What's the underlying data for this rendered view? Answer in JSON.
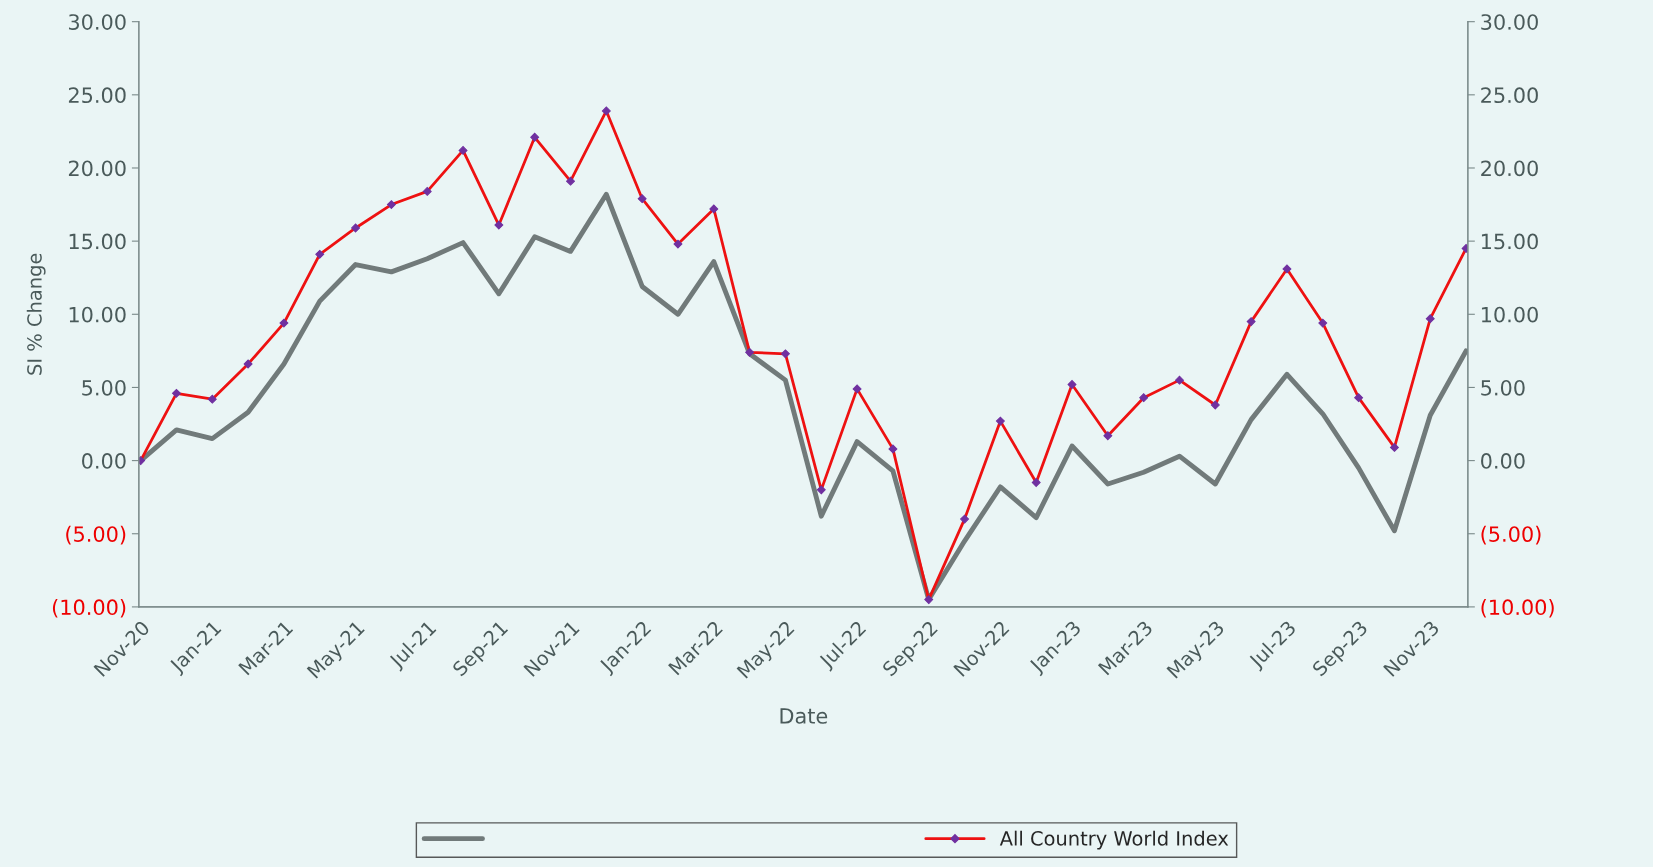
{
  "chart_data": {
    "type": "line",
    "xlabel": "Date",
    "ylabel": "SI % Change",
    "categories": [
      "Nov-20",
      null,
      "Jan-21",
      null,
      "Mar-21",
      null,
      "May-21",
      null,
      "Jul-21",
      null,
      "Sep-21",
      null,
      "Nov-21",
      null,
      "Jan-22",
      null,
      "Mar-22",
      null,
      "May-22",
      null,
      "Jul-22",
      null,
      "Sep-22",
      null,
      "Nov-22",
      null,
      "Jan-23",
      null,
      "Mar-23",
      null,
      "May-23",
      null,
      "Jul-23",
      null,
      "Sep-23",
      null,
      "Nov-23",
      null
    ],
    "series": [
      {
        "color": "#717a7a",
        "marker": "none",
        "values": [
          0,
          2.1,
          1.5,
          3.3,
          6.6,
          10.9,
          13.4,
          12.9,
          13.8,
          14.9,
          11.4,
          15.3,
          14.3,
          18.2,
          11.9,
          10.0,
          13.6,
          7.3,
          5.5,
          -3.8,
          1.3,
          -0.7,
          -9.5,
          -5.5,
          -1.8,
          -3.9,
          1.0,
          -1.6,
          -0.8,
          0.3,
          -1.6,
          2.8,
          5.9,
          3.2,
          -0.5,
          -4.8,
          3.1,
          7.5
        ]
      },
      {
        "name": "All Country World Index",
        "color": "#ee1111",
        "marker": "diamond",
        "values": [
          0,
          4.6,
          4.2,
          6.6,
          9.4,
          14.1,
          15.9,
          17.5,
          18.4,
          21.2,
          16.1,
          22.1,
          19.1,
          23.9,
          17.9,
          14.8,
          17.2,
          7.4,
          7.3,
          -2.0,
          4.9,
          0.8,
          -9.5,
          -4.0,
          2.7,
          -1.5,
          5.2,
          1.7,
          4.3,
          5.5,
          3.8,
          9.5,
          13.1,
          9.4,
          4.3,
          0.9,
          9.7,
          14.5
        ]
      }
    ],
    "ylim": [
      -10,
      30
    ],
    "yticks": [
      {
        "value": -10,
        "label": "(10.00)"
      },
      {
        "value": -5,
        "label": "(5.00)"
      },
      {
        "value": 0,
        "label": "0.00"
      },
      {
        "value": 5,
        "label": "5.00"
      },
      {
        "value": 10,
        "label": "10.00"
      },
      {
        "value": 15,
        "label": "15.00"
      },
      {
        "value": 20,
        "label": "20.00"
      },
      {
        "value": 25,
        "label": "25.00"
      },
      {
        "value": 30,
        "label": "30.00"
      }
    ],
    "y2lim": [
      -10,
      30
    ],
    "y2ticks": [
      {
        "value": -10,
        "label": "(10.00)"
      },
      {
        "value": -5,
        "label": "(5.00)"
      },
      {
        "value": 0,
        "label": "0.00"
      },
      {
        "value": 5,
        "label": "5.00"
      },
      {
        "value": 10,
        "label": "10.00"
      },
      {
        "value": 15,
        "label": "15.00"
      },
      {
        "value": 20,
        "label": "20.00"
      },
      {
        "value": 25,
        "label": "25.00"
      },
      {
        "value": 30,
        "label": "30.00"
      }
    ],
    "grid": false,
    "legend": "bottom",
    "line_style": "solid"
  }
}
